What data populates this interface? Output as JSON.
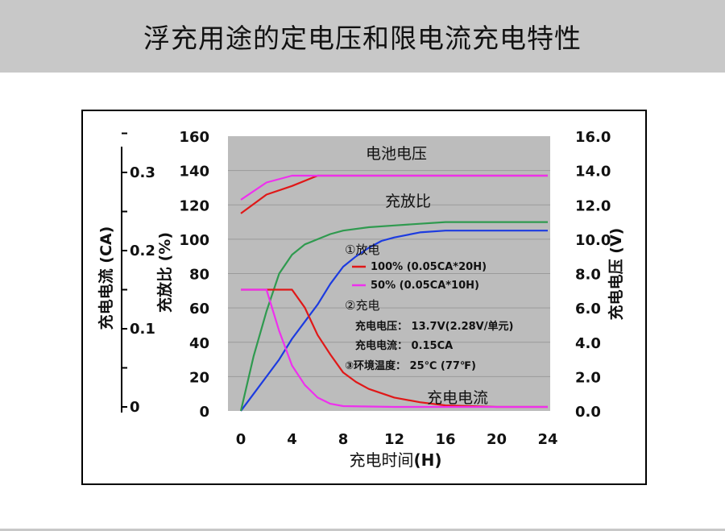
{
  "page": {
    "title": "浮充用途的定电压和限电流充电特性"
  },
  "colors": {
    "title_bg": "#c8c8c8",
    "plot_bg": "#bcbcbc",
    "voltage_100": "#e01818",
    "voltage_50": "#ee30ee",
    "ratio_100": "#1c3be0",
    "ratio_50": "#2f9a4f",
    "current_100": "#e01818",
    "current_50": "#ee30ee"
  },
  "chart_data": {
    "type": "line",
    "xlabel_text": "充电时间",
    "xlabel_unit": "(H)",
    "x_ticks": [
      "0",
      "4",
      "8",
      "12",
      "16",
      "20",
      "24"
    ],
    "xlim": [
      0,
      24
    ],
    "left_axis_ratio": {
      "label": "充放比 (%)",
      "ticks": [
        "0",
        "20",
        "40",
        "60",
        "80",
        "100",
        "120",
        "140",
        "160"
      ],
      "lim": [
        0,
        160
      ]
    },
    "far_left_axis_current": {
      "label": "充电电流 (CA)",
      "ticks": [
        "0",
        "0.1",
        "0.2",
        "0.3"
      ]
    },
    "right_axis_voltage": {
      "label": "充电电压 (V)",
      "ticks": [
        "0.0",
        "2.0",
        "4.0",
        "6.0",
        "8.0",
        "10.0",
        "12.0",
        "14.0",
        "16.0"
      ],
      "lim": [
        0,
        16
      ]
    },
    "annotations": {
      "voltage_curve": "电池电压",
      "ratio_curve": "充放比",
      "current_curve": "充电电流"
    },
    "legend": {
      "discharge_title": "①放电",
      "d100": "100% (0.05CA*20H)",
      "d50": "50% (0.05CA*10H)",
      "charge_title": "②充电",
      "charge_voltage": "充电电压： 13.7V(2.28V/单元)",
      "charge_current": "充电电流： 0.15CA",
      "env_temp": "③环境温度： 25℃ (77℉)"
    },
    "series": [
      {
        "name": "100% (0.05CA*20H)",
        "quantity": "voltage",
        "axis": "V",
        "x": [
          0,
          2,
          4,
          6,
          24
        ],
        "y": [
          11.5,
          12.6,
          13.1,
          13.7,
          13.7
        ]
      },
      {
        "name": "50% (0.05CA*10H)",
        "quantity": "voltage",
        "axis": "V",
        "x": [
          0,
          2,
          4,
          24
        ],
        "y": [
          12.3,
          13.3,
          13.7,
          13.7
        ]
      },
      {
        "name": "100% (0.05CA*20H)",
        "quantity": "charge_ratio",
        "axis": "%",
        "x": [
          0,
          1,
          2,
          3,
          4,
          5,
          6,
          7,
          8,
          9,
          10,
          11,
          12,
          14,
          16,
          20,
          24
        ],
        "y": [
          0,
          10,
          20,
          30,
          42,
          52,
          62,
          74,
          84,
          90,
          95,
          99,
          101,
          104,
          105,
          105,
          105
        ]
      },
      {
        "name": "50% (0.05CA*10H)",
        "quantity": "charge_ratio",
        "axis": "%",
        "x": [
          0,
          1,
          2,
          3,
          4,
          5,
          6,
          7,
          8,
          10,
          12,
          14,
          16,
          20,
          24
        ],
        "y": [
          0,
          32,
          58,
          80,
          91,
          97,
          100,
          103,
          105,
          107,
          108,
          109,
          110,
          110,
          110
        ]
      },
      {
        "name": "100% (0.05CA*20H)",
        "quantity": "charge_current",
        "axis": "CA",
        "x": [
          0,
          2,
          4,
          5,
          6,
          7,
          8,
          9,
          10,
          12,
          14,
          16,
          20,
          24
        ],
        "y": [
          0.15,
          0.15,
          0.15,
          0.127,
          0.092,
          0.067,
          0.044,
          0.032,
          0.023,
          0.012,
          0.006,
          0.002,
          0.0,
          0.0
        ]
      },
      {
        "name": "50% (0.05CA*10H)",
        "quantity": "charge_current",
        "axis": "CA",
        "x": [
          0,
          2,
          3,
          4,
          5,
          6,
          7,
          8,
          12,
          24
        ],
        "y": [
          0.15,
          0.15,
          0.097,
          0.053,
          0.028,
          0.012,
          0.004,
          0.001,
          0.0,
          0.0
        ]
      }
    ]
  }
}
